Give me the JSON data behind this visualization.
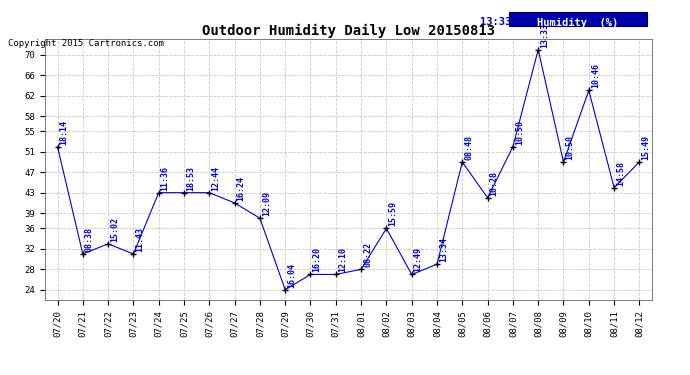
{
  "title": "Outdoor Humidity Daily Low 20150813",
  "copyright": "Copyright 2015 Cartronics.com",
  "legend_label": "Humidity  (%)",
  "legend_time": "13:33",
  "ylim": [
    22,
    73
  ],
  "yticks": [
    24,
    28,
    32,
    36,
    39,
    43,
    47,
    51,
    55,
    58,
    62,
    66,
    70
  ],
  "background_color": "#ffffff",
  "grid_color": "#c8c8c8",
  "line_color": "#0000cc",
  "point_color": "#000000",
  "label_color": "#0000cc",
  "legend_box_color": "#0000aa",
  "legend_text_color": "#ffffff",
  "dates": [
    "07/20",
    "07/21",
    "07/22",
    "07/23",
    "07/24",
    "07/25",
    "07/26",
    "07/27",
    "07/28",
    "07/29",
    "07/30",
    "07/31",
    "08/01",
    "08/02",
    "08/03",
    "08/04",
    "08/05",
    "08/06",
    "08/07",
    "08/08",
    "08/09",
    "08/10",
    "08/11",
    "08/12"
  ],
  "values": [
    52,
    31,
    33,
    31,
    43,
    43,
    43,
    41,
    38,
    24,
    27,
    27,
    28,
    36,
    27,
    29,
    49,
    42,
    52,
    71,
    49,
    63,
    44,
    49
  ],
  "times": [
    "18:14",
    "08:38",
    "15:02",
    "11:43",
    "11:36",
    "18:53",
    "12:44",
    "16:24",
    "12:09",
    "16:04",
    "16:20",
    "12:10",
    "08:22",
    "15:59",
    "12:49",
    "13:34",
    "08:48",
    "10:28",
    "10:50",
    "13:33",
    "10:50",
    "10:46",
    "14:58",
    "15:49"
  ],
  "title_fontsize": 10,
  "axis_fontsize": 6.5,
  "label_fontsize": 6,
  "copyright_fontsize": 6.5
}
